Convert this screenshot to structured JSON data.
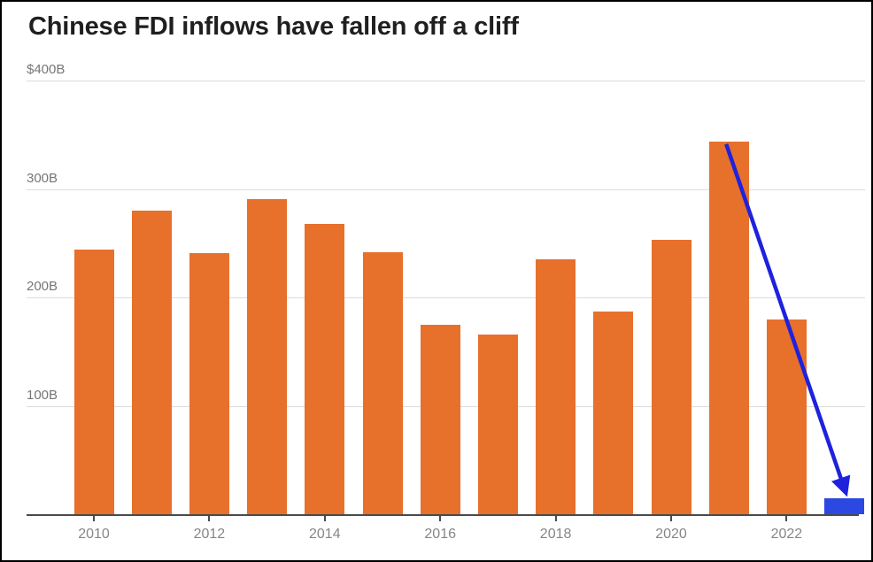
{
  "title": "Chinese FDI inflows have fallen off a cliff",
  "chart_data": {
    "type": "bar",
    "title": "Chinese FDI inflows have fallen off a cliff",
    "unit": "USD billions",
    "x": [
      2010,
      2011,
      2012,
      2013,
      2014,
      2015,
      2016,
      2017,
      2018,
      2019,
      2020,
      2021,
      2022,
      2023
    ],
    "values": [
      244,
      280,
      241,
      291,
      268,
      242,
      175,
      166,
      235,
      187,
      253,
      344,
      180,
      15
    ],
    "bar_color": "#e7702b",
    "highlight_year": 2023,
    "highlight_color": "#2b49e0",
    "ylim": [
      0,
      400
    ],
    "yticks": [
      400,
      300,
      200,
      100
    ],
    "ytick_labels": [
      "$400B",
      "300B",
      "200B",
      "100B"
    ],
    "xtick_labels": [
      "2010",
      "2012",
      "2014",
      "2016",
      "2018",
      "2020",
      "2022"
    ],
    "grid": "horizontal",
    "legend": "none",
    "annotation": {
      "type": "arrow",
      "from_year": 2021,
      "to_year": 2023,
      "color": "#1e22dd"
    }
  }
}
